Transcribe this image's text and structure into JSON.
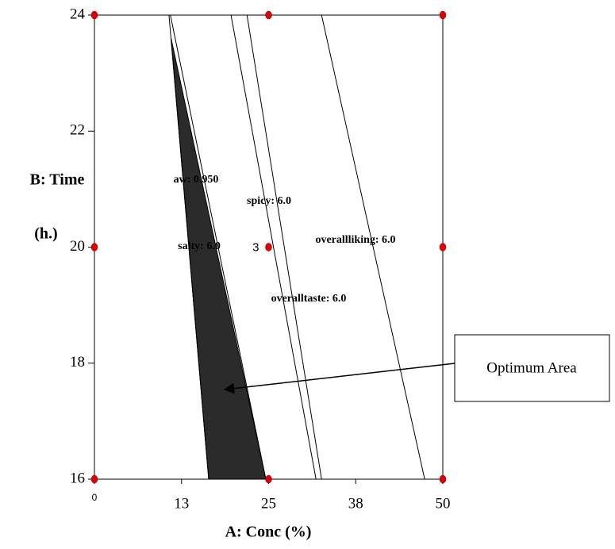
{
  "chart_data": {
    "type": "contour",
    "x_label": "A: Conc (%)",
    "y_label": [
      "B: Time",
      "(h.)"
    ],
    "xlim": [
      0,
      50
    ],
    "ylim": [
      16,
      24
    ],
    "xticks": [
      0,
      {
        "value": 12.5,
        "label": "13"
      },
      25,
      {
        "value": 37.5,
        "label": "38"
      },
      50
    ],
    "yticks": [
      16,
      18,
      20,
      22,
      24
    ],
    "contours": [
      {
        "label": "aw: 0.950",
        "x": [
          10.7,
          16.4
        ],
        "y": [
          24,
          16
        ]
      },
      {
        "label": "salty: 6.0",
        "x": [
          10.9,
          24.6
        ],
        "y": [
          24,
          16
        ]
      },
      {
        "label": "spicy: 6.0",
        "x": [
          19.6,
          31.8
        ],
        "y": [
          24,
          16
        ]
      },
      {
        "label": "overalltaste: 6.0",
        "x": [
          21.9,
          32.6
        ],
        "y": [
          24,
          16
        ]
      },
      {
        "label": "overallliking: 6.0",
        "x": [
          32.6,
          47.4
        ],
        "y": [
          24,
          16
        ]
      }
    ],
    "optimum_area": {
      "label": "Optimum Area",
      "color": "#2b2b2b",
      "x": [
        11.0,
        16.4,
        24.6
      ],
      "y": [
        23.6,
        16,
        16
      ]
    },
    "design_points": {
      "color": "#e00000",
      "x": [
        0,
        25,
        50,
        0,
        25,
        50,
        0,
        25,
        50
      ],
      "y": [
        16,
        16,
        16,
        20,
        20,
        20,
        24,
        24,
        24
      ]
    },
    "center_replicates": {
      "x": 25,
      "y": 20,
      "count": 3
    }
  }
}
